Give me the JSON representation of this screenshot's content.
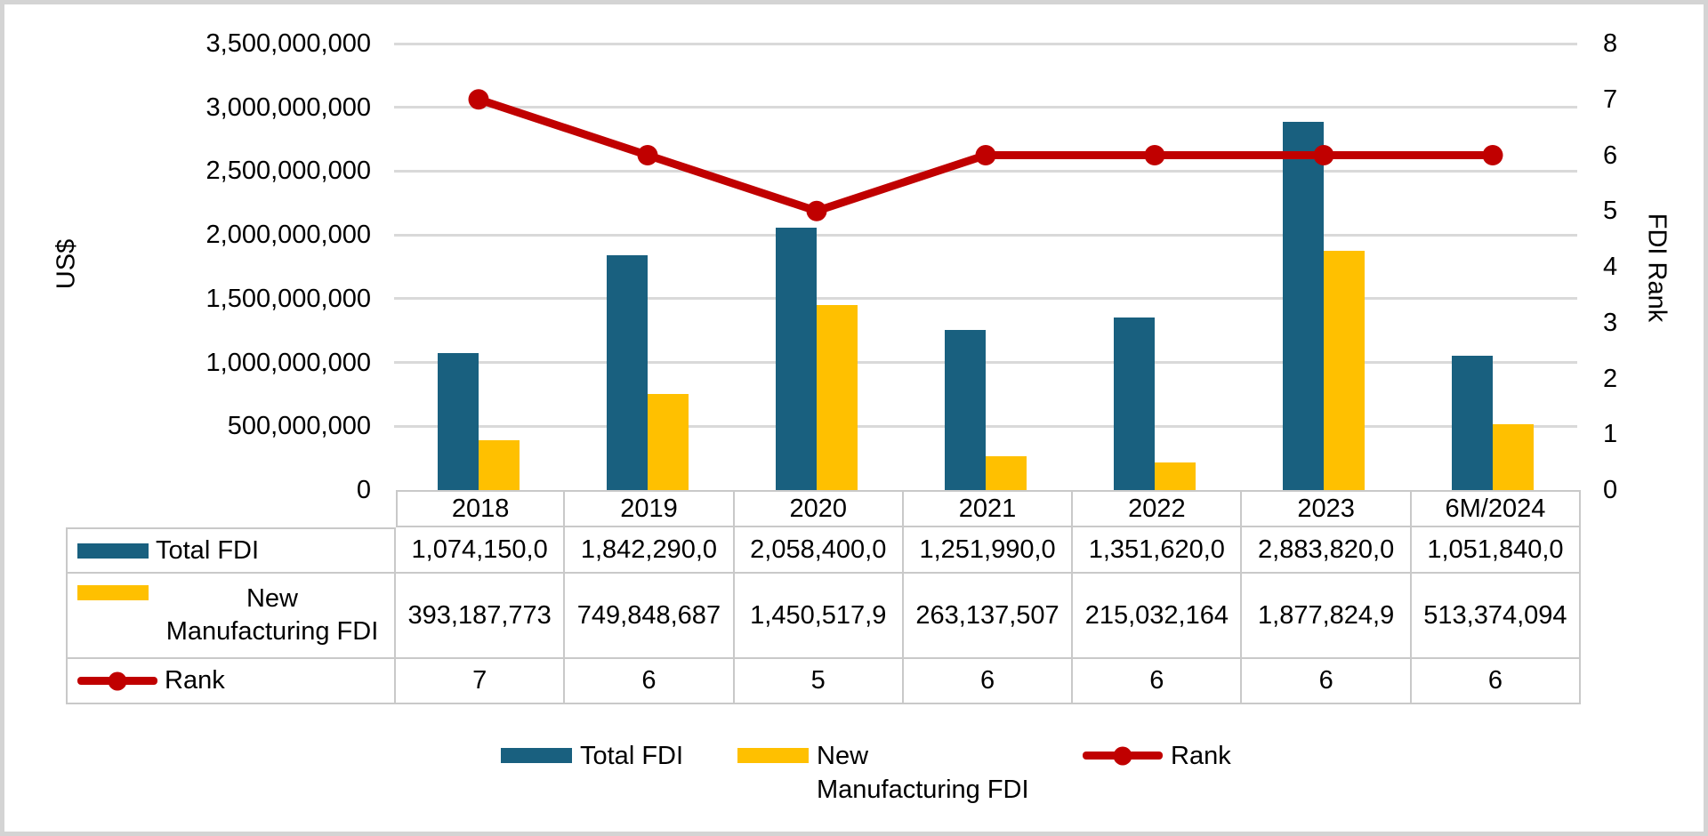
{
  "colors": {
    "total_fdi": "#19607F",
    "new_mfg_fdi": "#FFC000",
    "rank_line": "#C00000",
    "gridline": "#D9D9D9",
    "table_border": "#C9C9C9"
  },
  "axes": {
    "left_title": "US$",
    "right_title": "FDI Rank",
    "left_tick_labels": [
      "3,500,000,000",
      "3,000,000,000",
      "2,500,000,000",
      "2,000,000,000",
      "1,500,000,000",
      "1,000,000,000",
      "500,000,000",
      "0"
    ],
    "right_tick_labels": [
      "8",
      "7",
      "6",
      "5",
      "4",
      "3",
      "2",
      "1",
      "0"
    ]
  },
  "chart_data": {
    "type": "combo",
    "categories": [
      "2018",
      "2019",
      "2020",
      "2021",
      "2022",
      "2023",
      "6M/2024"
    ],
    "series": [
      {
        "name": "Total FDI",
        "type": "bar",
        "axis": "left",
        "color": "#19607F",
        "values": [
          1074150000,
          1842290000,
          2058400000,
          1251990000,
          1351620000,
          2883820000,
          1051840000
        ]
      },
      {
        "name": "New Manufacturing FDI",
        "type": "bar",
        "axis": "left",
        "color": "#FFC000",
        "values": [
          393187773,
          749848687,
          1450517900,
          263137507,
          215032164,
          1877824900,
          513374094
        ]
      },
      {
        "name": "Rank",
        "type": "line",
        "axis": "right",
        "color": "#C00000",
        "values": [
          7,
          6,
          5,
          6,
          6,
          6,
          6
        ]
      }
    ],
    "left_axis": {
      "title": "US$",
      "min": 0,
      "max": 3500000000,
      "step": 500000000
    },
    "right_axis": {
      "title": "FDI Rank",
      "min": 0,
      "max": 8,
      "step": 1
    },
    "grid": true,
    "legend_position": "bottom"
  },
  "table": {
    "year_headers": [
      "2018",
      "2019",
      "2020",
      "2021",
      "2022",
      "2023",
      "6M/2024"
    ],
    "rows": [
      {
        "label_lines": [
          "Total FDI"
        ],
        "key": "bar",
        "color": "#19607F",
        "values": [
          "1,074,150,0",
          "1,842,290,0",
          "2,058,400,0",
          "1,251,990,0",
          "1,351,620,0",
          "2,883,820,0",
          "1,051,840,0"
        ]
      },
      {
        "label_lines": [
          "New",
          "Manufacturing FDI"
        ],
        "key": "bar",
        "color": "#FFC000",
        "values": [
          "393,187,773",
          "749,848,687",
          "1,450,517,9",
          "263,137,507",
          "215,032,164",
          "1,877,824,9",
          "513,374,094"
        ]
      },
      {
        "label_lines": [
          "Rank"
        ],
        "key": "line",
        "color": "#C00000",
        "values": [
          "7",
          "6",
          "5",
          "6",
          "6",
          "6",
          "6"
        ]
      }
    ]
  },
  "legend": {
    "items": [
      {
        "label_lines": [
          "Total FDI"
        ],
        "key": "bar",
        "color": "#19607F"
      },
      {
        "label_lines": [
          "New",
          "Manufacturing FDI"
        ],
        "key": "bar",
        "color": "#FFC000"
      },
      {
        "label_lines": [
          "Rank"
        ],
        "key": "line",
        "color": "#C00000"
      }
    ]
  }
}
